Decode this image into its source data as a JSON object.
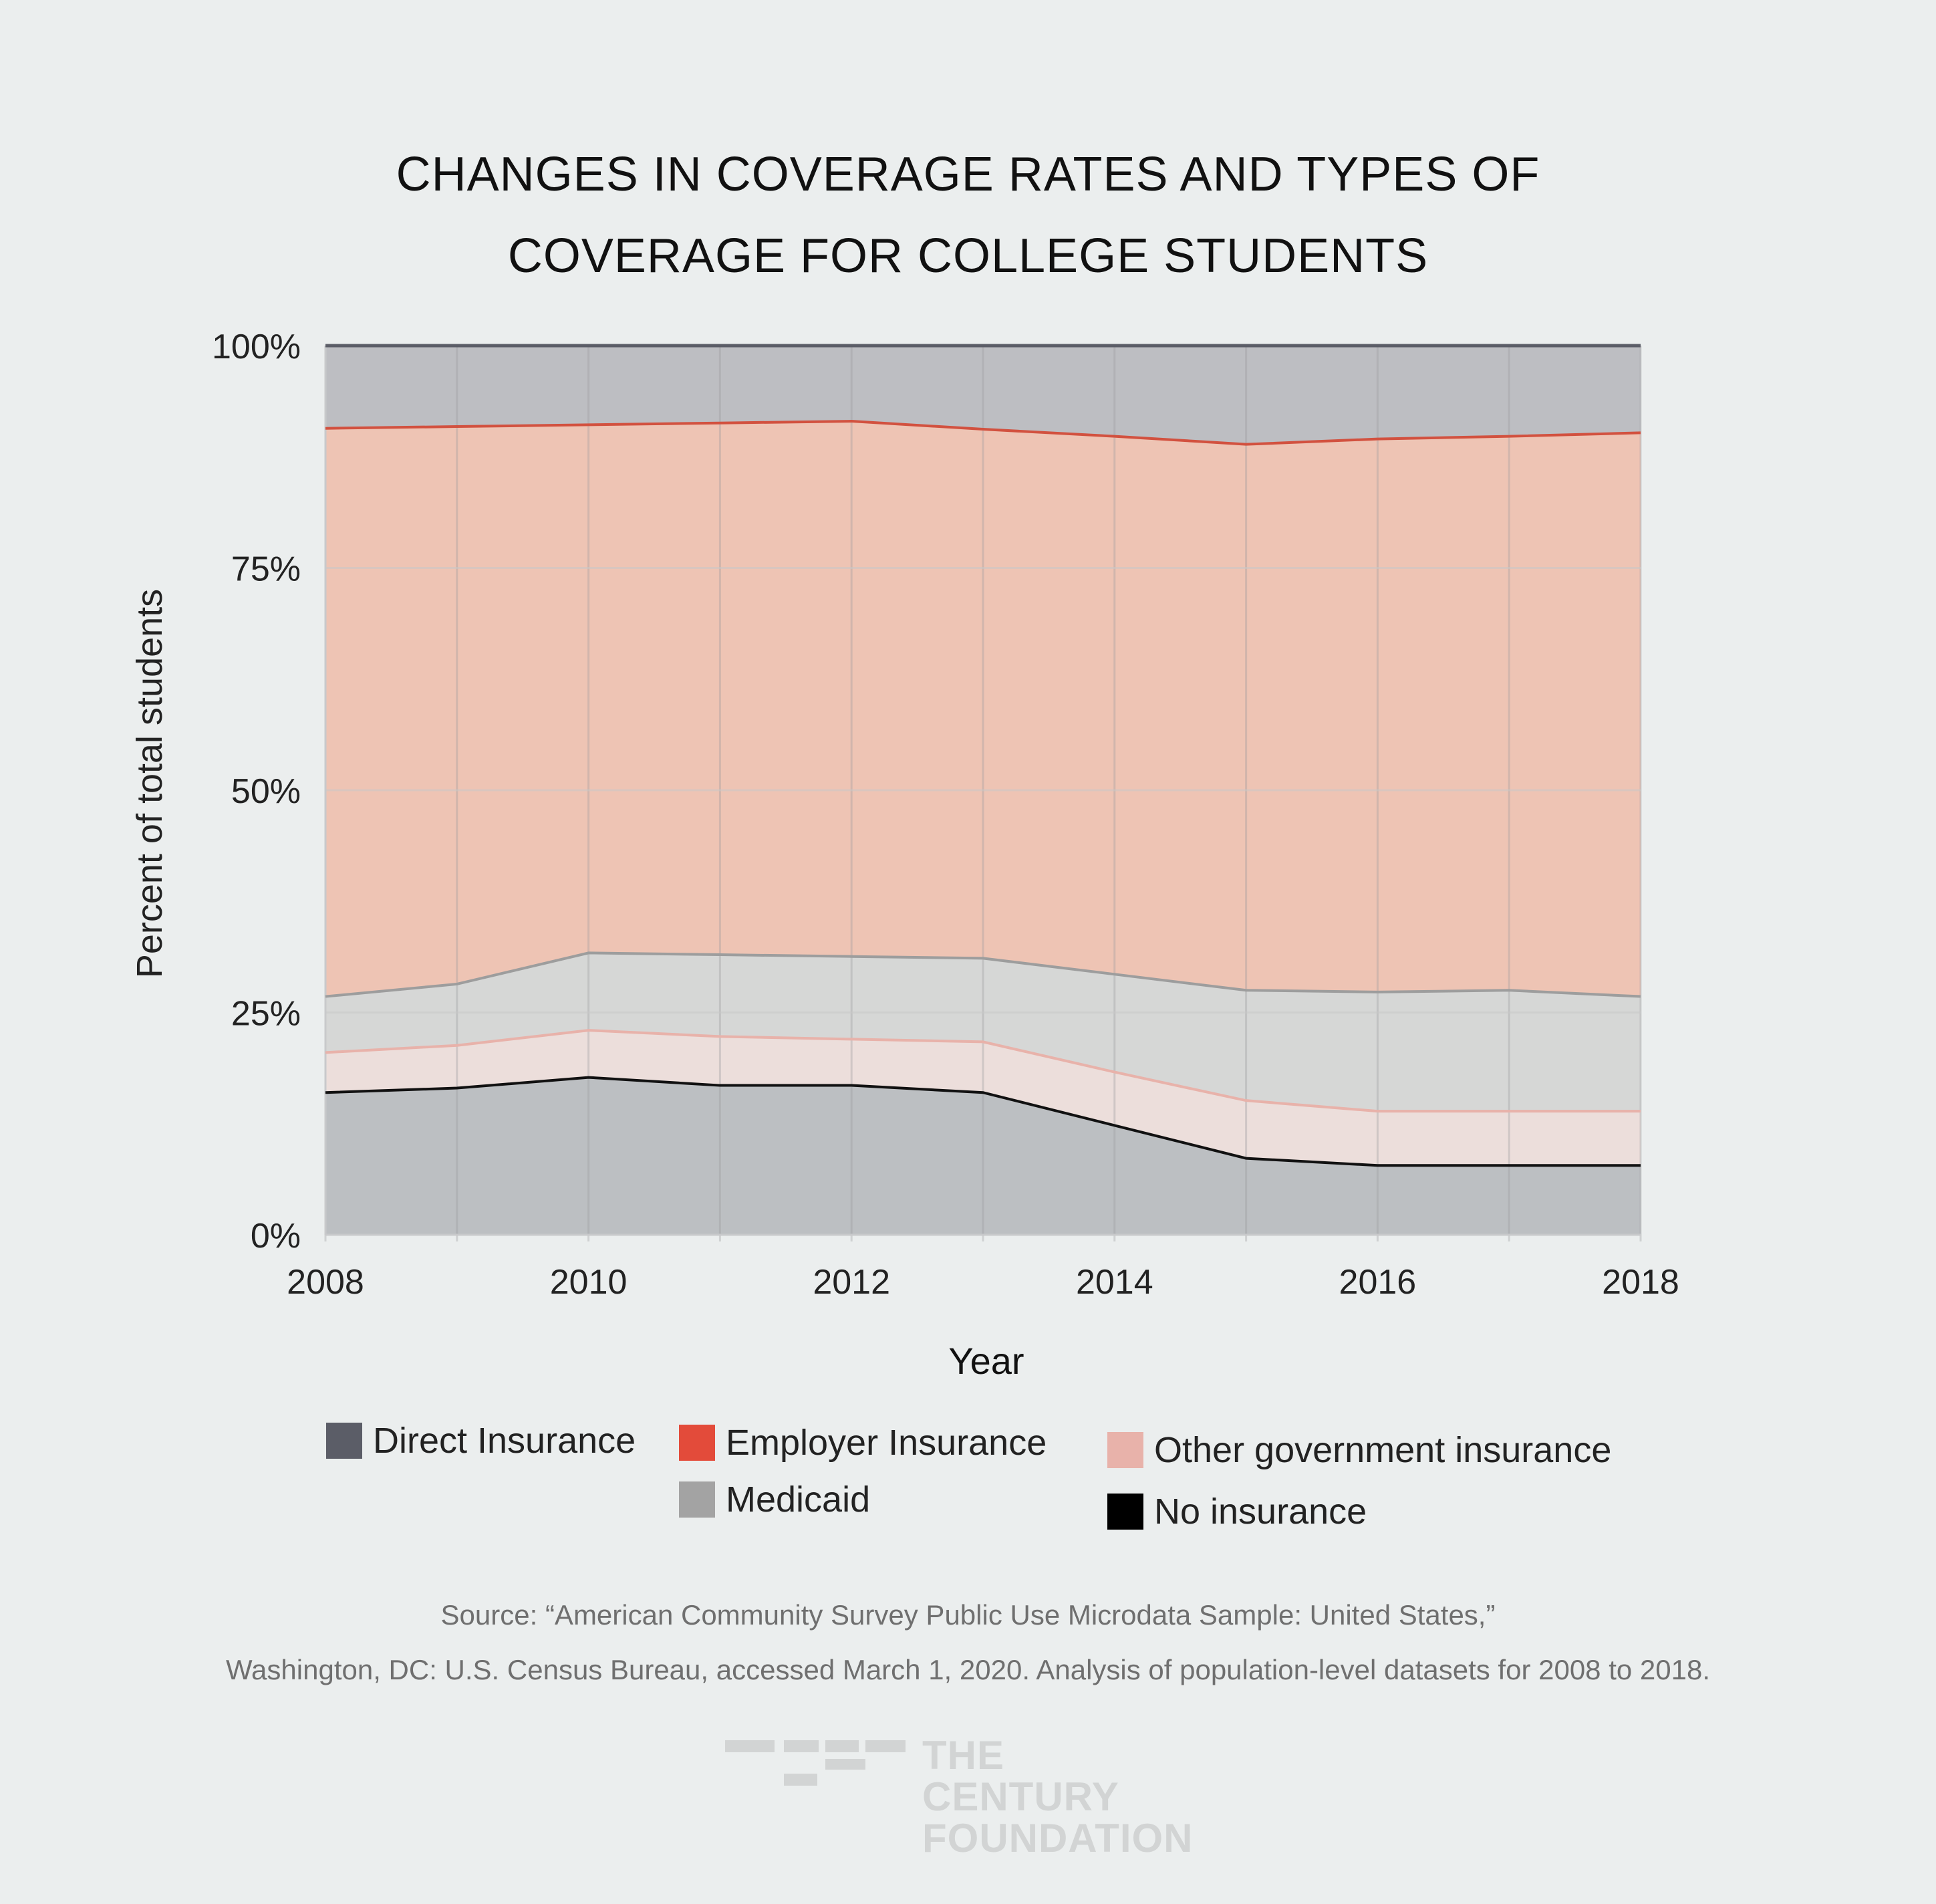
{
  "chart_data": {
    "type": "area",
    "title_lines": [
      "CHANGES IN COVERAGE RATES AND TYPES OF",
      "COVERAGE FOR COLLEGE STUDENTS"
    ],
    "xlabel": "Year",
    "ylabel": "Percent of total students",
    "x": [
      2008,
      2009,
      2010,
      2011,
      2012,
      2013,
      2014,
      2015,
      2016,
      2017,
      2018
    ],
    "x_tick_labels": [
      "2008",
      "2010",
      "2012",
      "2014",
      "2016",
      "2018"
    ],
    "y_tick_labels": [
      "0%",
      "25%",
      "50%",
      "75%",
      "100%"
    ],
    "ylim": [
      0,
      100
    ],
    "stacking": "cumulative boundaries from bottom",
    "boundaries": {
      "no_insurance_top": [
        16.0,
        16.5,
        17.7,
        16.8,
        16.8,
        16.0,
        12.3,
        8.6,
        7.8,
        7.8,
        7.8
      ],
      "other_government_top": [
        20.5,
        21.3,
        23.0,
        22.3,
        22.0,
        21.7,
        18.3,
        15.1,
        13.9,
        13.9,
        13.9
      ],
      "medicaid_top": [
        26.8,
        28.2,
        31.7,
        31.5,
        31.3,
        31.1,
        29.3,
        27.5,
        27.3,
        27.5,
        26.8
      ],
      "employer_top": [
        90.7,
        90.9,
        91.1,
        91.3,
        91.5,
        90.6,
        89.8,
        88.9,
        89.5,
        89.8,
        90.2
      ],
      "direct_top": [
        100,
        100,
        100,
        100,
        100,
        100,
        100,
        100,
        100,
        100,
        100
      ]
    },
    "series": [
      {
        "name": "No insurance",
        "values": [
          16.0,
          16.5,
          17.7,
          16.8,
          16.8,
          16.0,
          12.3,
          8.6,
          7.8,
          7.8,
          7.8
        ]
      },
      {
        "name": "Other government insurance",
        "values": [
          4.5,
          4.8,
          5.3,
          5.5,
          5.2,
          5.7,
          6.0,
          6.5,
          6.1,
          6.1,
          6.1
        ]
      },
      {
        "name": "Medicaid",
        "values": [
          6.3,
          6.9,
          8.7,
          9.2,
          9.3,
          9.4,
          11.0,
          12.4,
          13.4,
          13.6,
          12.9
        ]
      },
      {
        "name": "Employer Insurance",
        "values": [
          63.9,
          62.7,
          59.4,
          59.8,
          60.2,
          59.5,
          60.5,
          61.4,
          62.2,
          62.3,
          63.4
        ]
      },
      {
        "name": "Direct Insurance",
        "values": [
          9.3,
          9.1,
          8.9,
          8.7,
          8.5,
          9.4,
          10.2,
          11.1,
          10.5,
          10.2,
          9.8
        ]
      }
    ],
    "legend": [
      {
        "label": "Direct Insurance",
        "color": "#5b5d67"
      },
      {
        "label": "Employer Insurance",
        "color": "#e34b3a"
      },
      {
        "label": "Medicaid",
        "color": "#a3a3a3"
      },
      {
        "label": "Other government insurance",
        "color": "#e8b2aa"
      },
      {
        "label": "No insurance",
        "color": "#000000"
      }
    ],
    "fills": {
      "no_insurance": "#bcbfc2",
      "other_government": "#ecdedb",
      "medicaid": "#d6d7d6",
      "employer": "#eec4b4",
      "direct": "#bdbec2"
    },
    "line_colors": {
      "no_insurance_top": "#111111",
      "other_government_top": "#e8b2aa",
      "medicaid_top": "#9d9d9d",
      "employer_top": "#d2513f",
      "direct_top": "#5b5d67"
    },
    "legend_placement": "bottom",
    "grid": true
  },
  "source": {
    "line1": "Source:   “American Community Survey Public Use Microdata Sample: United States,”",
    "line2": "Washington, DC: U.S. Census Bureau, accessed March 1, 2020. Analysis of population-level datasets for 2008 to 2018."
  },
  "logo": {
    "line1": "THE CENTURY",
    "line2": "FOUNDATION"
  }
}
